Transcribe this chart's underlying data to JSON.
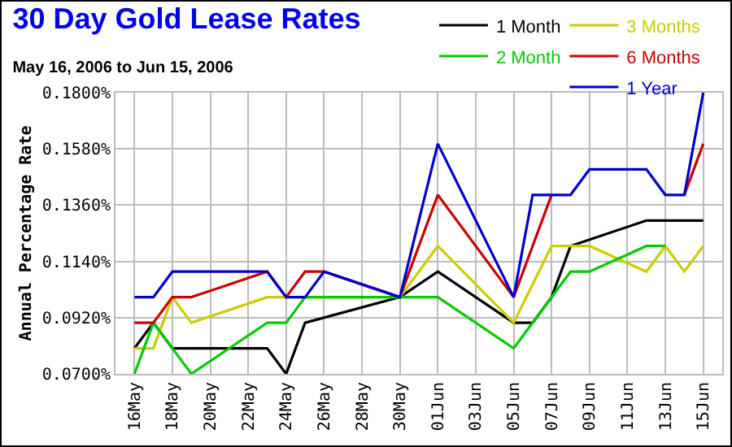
{
  "chart_data": {
    "type": "line",
    "title": "30 Day Gold Lease Rates",
    "subtitle": "May 16, 2006 to Jun 15, 2006",
    "ylabel": "Annual Percentage Rate",
    "series": [
      {
        "name": "1 Month",
        "color": "#000000",
        "x": [
          "2006-05-16",
          "2006-05-17",
          "2006-05-18",
          "2006-05-23",
          "2006-05-24",
          "2006-05-25",
          "2006-05-30",
          "2006-06-01",
          "2006-06-05",
          "2006-06-06",
          "2006-06-07",
          "2006-06-08",
          "2006-06-12",
          "2006-06-15"
        ],
        "values": [
          0.08,
          0.09,
          0.08,
          0.08,
          0.07,
          0.09,
          0.1,
          0.11,
          0.09,
          0.09,
          0.1,
          0.12,
          0.13,
          0.13
        ]
      },
      {
        "name": "3 Months",
        "color": "#cccc00",
        "x": [
          "2006-05-16",
          "2006-05-17",
          "2006-05-18",
          "2006-05-19",
          "2006-05-23",
          "2006-05-30",
          "2006-06-01",
          "2006-06-05",
          "2006-06-07",
          "2006-06-09",
          "2006-06-12",
          "2006-06-13",
          "2006-06-14",
          "2006-06-15"
        ],
        "values": [
          0.08,
          0.08,
          0.1,
          0.09,
          0.1,
          0.1,
          0.12,
          0.09,
          0.12,
          0.12,
          0.11,
          0.12,
          0.11,
          0.12
        ]
      },
      {
        "name": "2 Month",
        "color": "#00cc00",
        "x": [
          "2006-05-16",
          "2006-05-17",
          "2006-05-19",
          "2006-05-23",
          "2006-05-24",
          "2006-05-25",
          "2006-06-01",
          "2006-06-05",
          "2006-06-08",
          "2006-06-09",
          "2006-06-12",
          "2006-06-13"
        ],
        "values": [
          0.07,
          0.09,
          0.07,
          0.09,
          0.09,
          0.1,
          0.1,
          0.08,
          0.11,
          0.11,
          0.12,
          0.12
        ]
      },
      {
        "name": "6 Months",
        "color": "#cc0000",
        "x": [
          "2006-05-16",
          "2006-05-17",
          "2006-05-18",
          "2006-05-19",
          "2006-05-23",
          "2006-05-24",
          "2006-05-25",
          "2006-05-26",
          "2006-05-30",
          "2006-06-01",
          "2006-06-05",
          "2006-06-07",
          "2006-06-08",
          "2006-06-14",
          "2006-06-15"
        ],
        "values": [
          0.09,
          0.09,
          0.1,
          0.1,
          0.11,
          0.1,
          0.11,
          0.11,
          0.1,
          0.14,
          0.1,
          0.14,
          null,
          0.14,
          0.16
        ]
      },
      {
        "name": "1 Year",
        "color": "#0000cc",
        "x": [
          "2006-05-16",
          "2006-05-17",
          "2006-05-18",
          "2006-05-23",
          "2006-05-24",
          "2006-05-25",
          "2006-05-26",
          "2006-05-30",
          "2006-06-01",
          "2006-06-05",
          "2006-06-06",
          "2006-06-08",
          "2006-06-09",
          "2006-06-12",
          "2006-06-13",
          "2006-06-14",
          "2006-06-15"
        ],
        "values": [
          0.1,
          0.1,
          0.11,
          0.11,
          0.1,
          0.1,
          0.11,
          0.1,
          0.16,
          0.1,
          0.14,
          0.14,
          0.15,
          0.15,
          0.14,
          0.14,
          0.18
        ]
      }
    ],
    "xlim": [
      "2006-05-15",
      "2006-06-16"
    ],
    "xticks": [
      {
        "value": "2006-05-16",
        "label": "16May"
      },
      {
        "value": "2006-05-18",
        "label": "18May"
      },
      {
        "value": "2006-05-20",
        "label": "20May"
      },
      {
        "value": "2006-05-22",
        "label": "22May"
      },
      {
        "value": "2006-05-24",
        "label": "24May"
      },
      {
        "value": "2006-05-26",
        "label": "26May"
      },
      {
        "value": "2006-05-28",
        "label": "28May"
      },
      {
        "value": "2006-05-30",
        "label": "30May"
      },
      {
        "value": "2006-06-01",
        "label": "01Jun"
      },
      {
        "value": "2006-06-03",
        "label": "03Jun"
      },
      {
        "value": "2006-06-05",
        "label": "05Jun"
      },
      {
        "value": "2006-06-07",
        "label": "07Jun"
      },
      {
        "value": "2006-06-09",
        "label": "09Jun"
      },
      {
        "value": "2006-06-11",
        "label": "11Jun"
      },
      {
        "value": "2006-06-13",
        "label": "13Jun"
      },
      {
        "value": "2006-06-15",
        "label": "15Jun"
      }
    ],
    "ylim": [
      0.07,
      0.18
    ],
    "yticks": [
      {
        "value": 0.07,
        "label": "0.0700%"
      },
      {
        "value": 0.092,
        "label": "0.0920%"
      },
      {
        "value": 0.114,
        "label": "0.1140%"
      },
      {
        "value": 0.136,
        "label": "0.1360%"
      },
      {
        "value": 0.158,
        "label": "0.1580%"
      },
      {
        "value": 0.18,
        "label": "0.1800%"
      }
    ],
    "grid": true,
    "legend": "top right",
    "line_style": "solid"
  }
}
